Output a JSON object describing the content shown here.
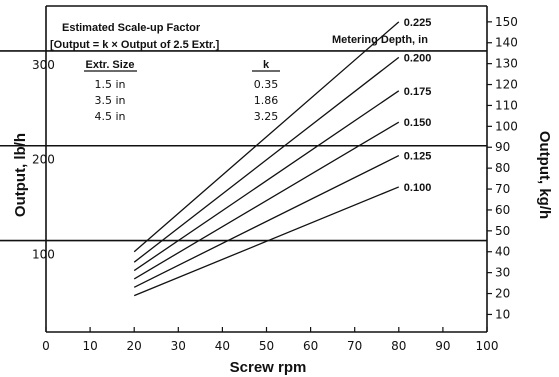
{
  "chart_data": {
    "type": "line",
    "xlabel": "Screw rpm",
    "ylabel_left": "Output, lb/h",
    "ylabel_right": "Output, kg/h",
    "xlim": [
      0,
      100
    ],
    "x_ticks": [
      "0",
      "10",
      "20",
      "30",
      "40",
      "50",
      "60",
      "70",
      "80",
      "90",
      "100"
    ],
    "left_ticks": [
      "100",
      "200",
      "300"
    ],
    "left_tick_values": [
      100,
      200,
      300
    ],
    "right_ylim": [
      0,
      155
    ],
    "right_ticks": [
      "10",
      "20",
      "30",
      "40",
      "50",
      "60",
      "70",
      "80",
      "90",
      "100",
      "110",
      "120",
      "130",
      "140",
      "150"
    ],
    "lb_per_kg": 2.20462,
    "legend_title": "Metering Depth, in",
    "series": [
      {
        "name": "0.225",
        "x": [
          20,
          80
        ],
        "y": [
          40,
          150
        ]
      },
      {
        "name": "0.200",
        "x": [
          20,
          80
        ],
        "y": [
          35,
          133
        ]
      },
      {
        "name": "0.175",
        "x": [
          20,
          80
        ],
        "y": [
          31,
          117
        ]
      },
      {
        "name": "0.150",
        "x": [
          20,
          80
        ],
        "y": [
          27,
          102
        ]
      },
      {
        "name": "0.125",
        "x": [
          20,
          80
        ],
        "y": [
          23,
          86
        ]
      },
      {
        "name": "0.100",
        "x": [
          20,
          80
        ],
        "y": [
          19,
          71
        ]
      }
    ],
    "scaleup_table": {
      "title": "Estimated Scale-up Factor",
      "formula": "[Output = k × Output of 2.5 Extr.]",
      "col1": "Extr. Size",
      "col2": "k",
      "rows": [
        {
          "size": "1.5 in",
          "k": "0.35"
        },
        {
          "size": "3.5 in",
          "k": "1.86"
        },
        {
          "size": "4.5 in",
          "k": "3.25"
        }
      ]
    }
  }
}
